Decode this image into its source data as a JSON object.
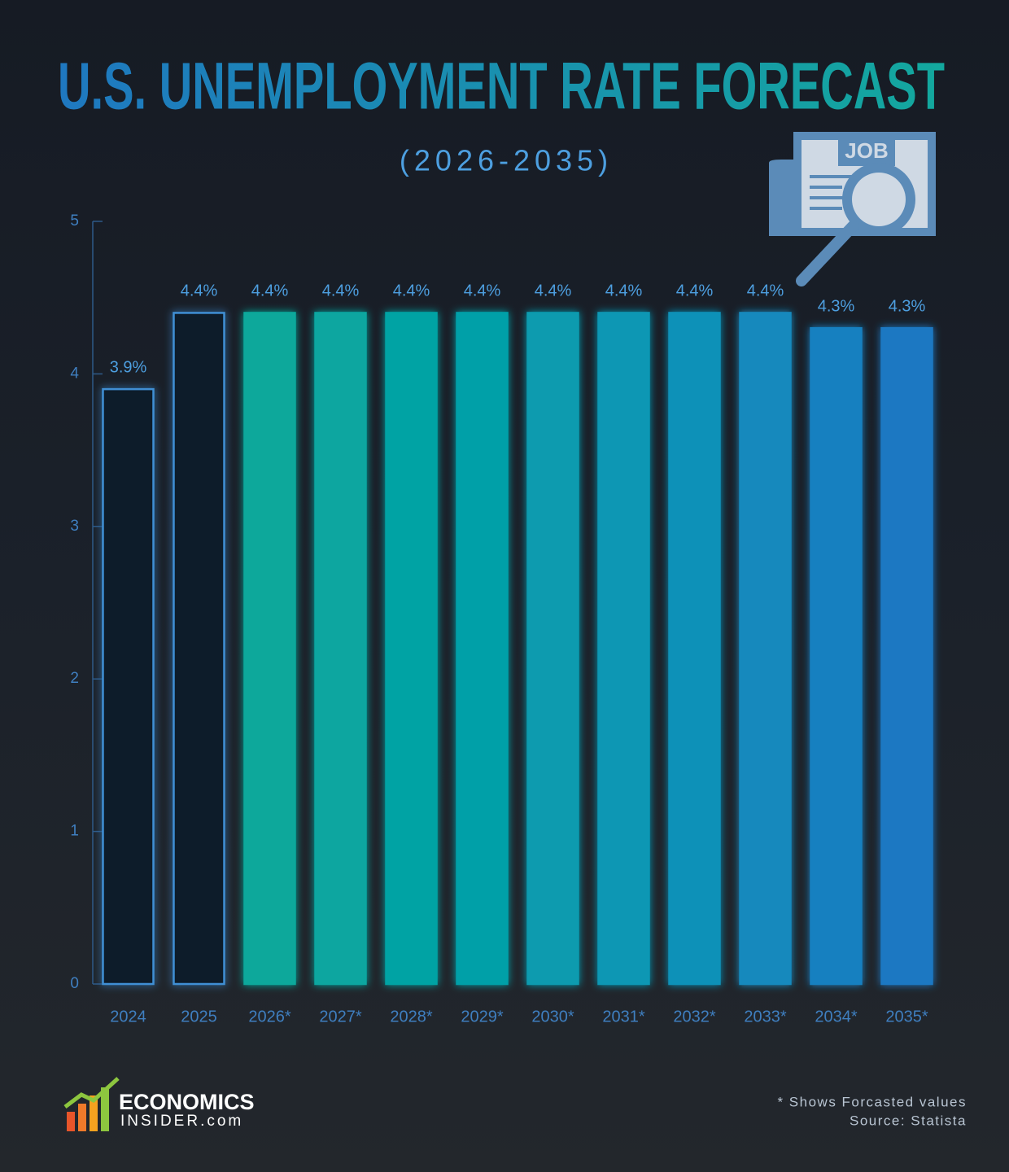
{
  "chart_data": {
    "type": "bar",
    "title": "U.S. UNEMPLOYMENT RATE FORECAST",
    "subtitle": "(2026-2035)",
    "categories": [
      "2024",
      "2025",
      "2026*",
      "2027*",
      "2028*",
      "2029*",
      "2030*",
      "2031*",
      "2032*",
      "2033*",
      "2034*",
      "2035*"
    ],
    "values": [
      3.9,
      4.4,
      4.4,
      4.4,
      4.4,
      4.4,
      4.4,
      4.4,
      4.4,
      4.4,
      4.3,
      4.3
    ],
    "value_labels": [
      "3.9%",
      "4.4%",
      "4.4%",
      "4.4%",
      "4.4%",
      "4.4%",
      "4.4%",
      "4.4%",
      "4.4%",
      "4.4%",
      "4.3%",
      "4.3%"
    ],
    "colors": [
      "#0b1c2c",
      "#0b1c2c",
      "#0aa89b",
      "#08a6a0",
      "#06a3a4",
      "#05a0a8",
      "#099baf",
      "#0c97b4",
      "#1191b8",
      "#1589bd",
      "#1880c0",
      "#1a78c2"
    ],
    "edge_colors": [
      "#3f8fd4",
      "#3f8fd4",
      "#0aa89b",
      "#08a6a0",
      "#06a3a4",
      "#05a0a8",
      "#099baf",
      "#0c97b4",
      "#1191b8",
      "#1589bd",
      "#1880c0",
      "#1a78c2"
    ],
    "ylim": [
      0,
      5
    ],
    "yticks": [
      0,
      1,
      2,
      3,
      4,
      5
    ],
    "grid": false,
    "icon_label": "JOB",
    "footnote": "* Shows Forcasted values",
    "source": "Source: Statista",
    "logo": [
      "ECONOMICS",
      "INSIDER.com"
    ]
  }
}
